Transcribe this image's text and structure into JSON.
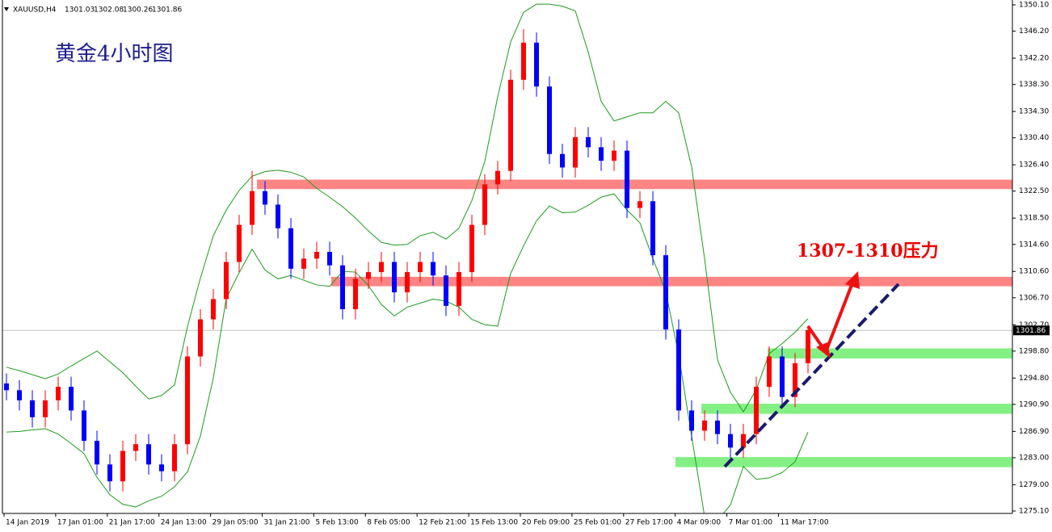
{
  "chart_data": {
    "type": "candlestick",
    "symbol": "XAUUSD,H4",
    "header_ohlc": [
      1301.03,
      1302.08,
      1300.26,
      1301.86
    ],
    "title": "黄金4小时图",
    "annotation": "1307-1310压力",
    "last_price": 1301.86,
    "x_labels": [
      "14 Jan 2019",
      "17 Jan 01:00",
      "21 Jan 17:00",
      "24 Jan 13:00",
      "29 Jan 05:00",
      "31 Jan 21:00",
      "5 Feb 13:00",
      "8 Feb 05:00",
      "12 Feb 21:00",
      "15 Feb 13:00",
      "20 Feb 09:00",
      "25 Feb 01:00",
      "27 Feb 17:00",
      "4 Mar 09:00",
      "7 Mar 01:00",
      "11 Mar 17:00"
    ],
    "ylim": [
      1275.1,
      1350.1
    ],
    "yticks": [
      {
        "value": 1350.1,
        "label": "1350.10"
      },
      {
        "value": 1346.2,
        "label": "1346.20"
      },
      {
        "value": 1342.2,
        "label": "1342.20"
      },
      {
        "value": 1338.3,
        "label": "1338.30"
      },
      {
        "value": 1334.3,
        "label": "1334.30"
      },
      {
        "value": 1330.4,
        "label": "1330.40"
      },
      {
        "value": 1326.4,
        "label": "1326.40"
      },
      {
        "value": 1322.5,
        "label": "1322.50"
      },
      {
        "value": 1318.5,
        "label": "1318.50"
      },
      {
        "value": 1314.6,
        "label": "1314.60"
      },
      {
        "value": 1310.6,
        "label": "1310.60"
      },
      {
        "value": 1306.7,
        "label": "1306.70"
      },
      {
        "value": 1302.7,
        "label": "1302.70"
      },
      {
        "value": 1298.8,
        "label": "1298.80"
      },
      {
        "value": 1294.8,
        "label": "1294.80"
      },
      {
        "value": 1290.9,
        "label": "1290.90"
      },
      {
        "value": 1286.9,
        "label": "1286.90"
      },
      {
        "value": 1283,
        "label": "1283.00"
      },
      {
        "value": 1279,
        "label": "1279.00"
      },
      {
        "value": 1275.1,
        "label": "1275.10"
      }
    ],
    "up_color": "#ff0000",
    "down_color": "#0000ff",
    "open": [
      1294.0,
      1293.0,
      1291.5,
      1289.0,
      1291.5,
      1293.5,
      1290.0,
      1285.5,
      1282.0,
      1279.5,
      1284.0,
      1285.0,
      1282.0,
      1281.0,
      1285.0,
      1298.0,
      1303.5,
      1306.5,
      1312.0,
      1317.5,
      1322.5,
      1320.5,
      1317.0,
      1311.0,
      1312.5,
      1313.5,
      1311.5,
      1305.0,
      1309.5,
      1310.5,
      1312.0,
      1307.5,
      1310.5,
      1312.0,
      1310.0,
      1305.5,
      1310.5,
      1317.5,
      1323.5,
      1325.5,
      1339.0,
      1344.5,
      1338.0,
      1328.0,
      1326.0,
      1330.5,
      1329.0,
      1327.0,
      1328.5,
      1320.0,
      1321.0,
      1313.0,
      1302.0,
      1290.0,
      1287.0,
      1288.5,
      1286.5,
      1284.5,
      1286.5,
      1293.5,
      1298.0,
      1292.0,
      1297.0
    ],
    "high": [
      1295.5,
      1294.5,
      1293.0,
      1293.0,
      1295.0,
      1295.0,
      1291.5,
      1287.0,
      1283.5,
      1285.5,
      1286.5,
      1286.5,
      1283.5,
      1286.5,
      1299.5,
      1305.0,
      1308.0,
      1313.5,
      1319.0,
      1325.5,
      1324.0,
      1322.0,
      1318.5,
      1314.0,
      1315.0,
      1315.0,
      1313.0,
      1311.0,
      1312.0,
      1313.5,
      1313.5,
      1312.0,
      1313.5,
      1313.5,
      1311.5,
      1312.0,
      1319.0,
      1325.0,
      1327.0,
      1340.5,
      1346.5,
      1346.0,
      1339.5,
      1329.5,
      1332.0,
      1332.0,
      1330.5,
      1330.0,
      1330.0,
      1322.5,
      1322.5,
      1314.5,
      1303.5,
      1291.5,
      1290.0,
      1290.0,
      1288.0,
      1288.0,
      1295.0,
      1299.5,
      1299.5,
      1298.5,
      1302.5
    ],
    "low": [
      1291.5,
      1290.0,
      1287.5,
      1287.5,
      1290.0,
      1288.5,
      1284.0,
      1280.5,
      1278.0,
      1278.0,
      1282.5,
      1280.5,
      1279.5,
      1279.5,
      1283.5,
      1296.5,
      1302.0,
      1305.0,
      1310.5,
      1316.0,
      1319.0,
      1315.5,
      1309.5,
      1309.5,
      1311.0,
      1310.0,
      1303.5,
      1303.5,
      1308.0,
      1309.0,
      1306.0,
      1306.0,
      1309.0,
      1308.5,
      1304.0,
      1304.0,
      1309.0,
      1316.0,
      1322.0,
      1324.0,
      1337.5,
      1336.5,
      1326.5,
      1324.5,
      1324.5,
      1327.5,
      1325.5,
      1325.5,
      1318.5,
      1318.5,
      1311.5,
      1300.5,
      1288.5,
      1285.5,
      1285.5,
      1285.0,
      1283.0,
      1283.0,
      1285.0,
      1292.0,
      1290.5,
      1290.5,
      1295.5
    ],
    "close": [
      1293.0,
      1291.5,
      1289.0,
      1291.5,
      1293.5,
      1290.0,
      1285.5,
      1282.0,
      1279.5,
      1284.0,
      1285.0,
      1282.0,
      1281.0,
      1285.0,
      1298.0,
      1303.5,
      1306.5,
      1312.0,
      1317.5,
      1322.5,
      1320.5,
      1317.0,
      1311.0,
      1312.5,
      1313.5,
      1311.5,
      1305.0,
      1309.5,
      1310.5,
      1312.0,
      1307.5,
      1310.5,
      1312.0,
      1310.0,
      1305.5,
      1310.5,
      1317.5,
      1323.5,
      1325.5,
      1339.0,
      1344.5,
      1338.0,
      1328.0,
      1326.0,
      1330.5,
      1329.0,
      1327.0,
      1328.5,
      1320.0,
      1321.0,
      1313.0,
      1302.0,
      1290.0,
      1287.0,
      1288.5,
      1286.5,
      1284.5,
      1286.5,
      1293.5,
      1298.0,
      1292.0,
      1297.0,
      1301.9
    ],
    "bands": {
      "color": "#1e9a1e",
      "upper": [
        1296.4,
        1295.9,
        1295.3,
        1294.7,
        1295.4,
        1296.6,
        1297.7,
        1298.8,
        1297.2,
        1295.6,
        1293.6,
        1291.7,
        1292.2,
        1293.8,
        1302.4,
        1309.6,
        1315.9,
        1319.7,
        1322.6,
        1324.7,
        1325.4,
        1325.6,
        1325.3,
        1324.6,
        1322.9,
        1321.6,
        1320.2,
        1318.5,
        1316.6,
        1314.9,
        1314.5,
        1314.6,
        1315.9,
        1316.4,
        1315.4,
        1317.0,
        1321.1,
        1326.9,
        1336.5,
        1344.6,
        1349.0,
        1350.2,
        1350.2,
        1349.9,
        1349.2,
        1343.1,
        1335.8,
        1332.9,
        1333.5,
        1334.1,
        1334.1,
        1335.8,
        1334.1,
        1326.1,
        1312.5,
        1297.5,
        1292.7,
        1289.8,
        1293.1,
        1298.4,
        1299.9,
        1301.6,
        1303.6
      ],
      "lower": [
        1286.8,
        1286.9,
        1287.1,
        1287.3,
        1286.5,
        1285.1,
        1283.6,
        1280.1,
        1277.5,
        1276.1,
        1275.7,
        1276.6,
        1277.3,
        1278.7,
        1280.9,
        1286.2,
        1294.8,
        1306.6,
        1310.4,
        1313.9,
        1310.8,
        1309.5,
        1310.0,
        1309.3,
        1308.6,
        1308.4,
        1310.6,
        1310.5,
        1308.5,
        1305.7,
        1304.0,
        1305.3,
        1305.9,
        1306.5,
        1306.2,
        1305.3,
        1303.5,
        1302.7,
        1302.5,
        1310.3,
        1314.4,
        1318.1,
        1320.3,
        1319.3,
        1319.4,
        1320.4,
        1321.6,
        1322.1,
        1319.7,
        1317.8,
        1312.5,
        1307.6,
        1298.2,
        1286.2,
        1274.3,
        1273.7,
        1276.0,
        1281.7,
        1279.8,
        1280.0,
        1280.8,
        1282.4,
        1286.8
      ]
    },
    "zones": [
      {
        "low": 1322.8,
        "high": 1324.2,
        "color": "#ff8484"
      },
      {
        "low": 1308.4,
        "high": 1309.8,
        "color": "#ff8484"
      },
      {
        "low": 1297.7,
        "high": 1299.2,
        "color": "#84f084"
      },
      {
        "low": 1289.5,
        "high": 1291.0,
        "color": "#84f084"
      },
      {
        "low": 1281.6,
        "high": 1283.1,
        "color": "#84f084"
      }
    ]
  }
}
